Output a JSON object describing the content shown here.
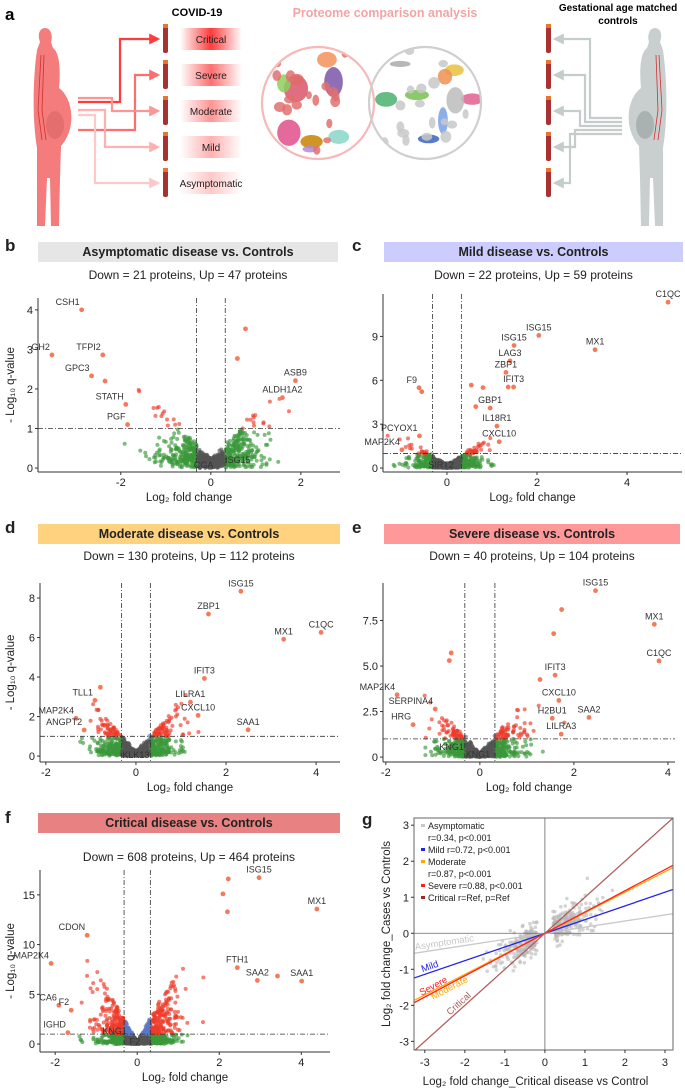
{
  "panel_a": {
    "letter": "a",
    "covid_title": "COVID-19",
    "severity_labels": [
      "Critical",
      "Severe",
      "Moderate",
      "Mild",
      "Asymptomatic"
    ],
    "severity_colors": [
      "#ff3b3b",
      "#ff6e6e",
      "#ff9494",
      "#ffb0b0",
      "#ffc8c8"
    ],
    "analysis_title": "Proteome comparison analysis",
    "controls_title_line1": "Gestational age matched",
    "controls_title_line2": "controls",
    "case_color": "#f47c7c",
    "control_color": "#c9cfcf"
  },
  "colors": {
    "significant": "#ee3a2a",
    "labeled_point": "#f47a5c",
    "not_significant_fc": "#3a983a",
    "not_significant": "#555555",
    "significant_small_fc": "#5a78c8"
  },
  "chart_data": [
    {
      "type": "scatter",
      "panel": "b",
      "title": "Asymptomatic disease vs. Controls",
      "title_bg": "#e6e6e6",
      "subtitle": "Down = 21 proteins, Up = 47 proteins",
      "xlabel": "Log₂ fold change",
      "ylabel": "- Log₁₀ q-value",
      "xlim": [
        -3.84,
        2.87
      ],
      "ylim": [
        -0.1,
        4.3
      ],
      "xticks": [
        {
          "v": -2,
          "t": "-2"
        },
        {
          "v": 0,
          "t": "0"
        },
        {
          "v": 2,
          "t": "2"
        }
      ],
      "yticks": [
        {
          "v": 0,
          "t": "0"
        },
        {
          "v": 1,
          "t": "1"
        },
        {
          "v": 2,
          "t": "2"
        },
        {
          "v": 3,
          "t": "3"
        },
        {
          "v": 4,
          "t": "4"
        }
      ],
      "fc_cutoff": 0.32,
      "q_cutoff": 1,
      "points": [
        {
          "label": "CSH1",
          "x": -2.87,
          "y": 4.0
        },
        {
          "label": "GH2",
          "x": -3.53,
          "y": 2.86
        },
        {
          "label": "TFPI2",
          "x": -2.4,
          "y": 2.86
        },
        {
          "label": "GPC3",
          "x": -2.65,
          "y": 2.33
        },
        {
          "label": "",
          "x": -2.35,
          "y": 2.2
        },
        {
          "label": "STATH",
          "x": -1.89,
          "y": 1.61
        },
        {
          "label": "PGF",
          "x": -1.85,
          "y": 1.1
        },
        {
          "label": "ASB9",
          "x": 1.88,
          "y": 2.21
        },
        {
          "label": "ALDH1A2",
          "x": 1.59,
          "y": 1.78
        },
        {
          "label": "",
          "x": 0.77,
          "y": 3.52
        },
        {
          "label": "",
          "x": 0.59,
          "y": 2.77
        },
        {
          "label": "CGA",
          "x": -0.16,
          "y": 0.08,
          "mark": false
        },
        {
          "label": "ISG15",
          "x": 0.6,
          "y": 0.2,
          "mark": false
        }
      ]
    },
    {
      "type": "scatter",
      "panel": "c",
      "title": "Mild disease vs. Controls",
      "title_bg": "#ccccff",
      "subtitle": "Down = 22 proteins, Up = 59 proteins",
      "xlabel": "Log₂ fold change",
      "ylabel": "",
      "xlim": [
        -1.42,
        5.22
      ],
      "ylim": [
        -0.27,
        11.9
      ],
      "xticks": [
        {
          "v": 0,
          "t": "0"
        },
        {
          "v": 2,
          "t": "2"
        },
        {
          "v": 4,
          "t": "4"
        }
      ],
      "yticks": [
        {
          "v": 0,
          "t": "0"
        },
        {
          "v": 3,
          "t": "3"
        },
        {
          "v": 6,
          "t": "6"
        },
        {
          "v": 9,
          "t": "9"
        }
      ],
      "fc_cutoff": 0.32,
      "q_cutoff": 1,
      "points": [
        {
          "label": "C1QC",
          "x": 4.91,
          "y": 11.34
        },
        {
          "label": "ISG15",
          "x": 2.04,
          "y": 9.07
        },
        {
          "label": "ISG15",
          "x": 1.49,
          "y": 8.38
        },
        {
          "label": "MX1",
          "x": 3.29,
          "y": 8.09
        },
        {
          "label": "LAG3",
          "x": 1.4,
          "y": 7.33
        },
        {
          "label": "ZBP1",
          "x": 1.31,
          "y": 6.54
        },
        {
          "label": "IFIT3",
          "x": 1.48,
          "y": 5.54
        },
        {
          "label": "",
          "x": 1.36,
          "y": 5.54
        },
        {
          "label": "F9",
          "x": -0.62,
          "y": 5.49
        },
        {
          "label": "",
          "x": -0.56,
          "y": 5.22
        },
        {
          "label": "GBP1",
          "x": 0.96,
          "y": 4.1
        },
        {
          "label": "IL18R1",
          "x": 1.11,
          "y": 2.87
        },
        {
          "label": "CXCL10",
          "x": 1.16,
          "y": 1.8
        },
        {
          "label": "PCYOX1",
          "x": -0.61,
          "y": 2.2
        },
        {
          "label": "MAP2K4",
          "x": -1.0,
          "y": 1.25
        },
        {
          "label": "",
          "x": 0.54,
          "y": 5.67
        },
        {
          "label": "",
          "x": 0.8,
          "y": 5.5
        },
        {
          "label": "",
          "x": 0.64,
          "y": 4.2
        },
        {
          "label": "SIRT2",
          "x": -0.13,
          "y": 0.2,
          "mark": false
        }
      ]
    },
    {
      "type": "scatter",
      "panel": "d",
      "title": "Moderate disease vs. Controls",
      "title_bg": "#ffd27f",
      "subtitle": "Down = 130 proteins, Up = 112 proteins",
      "xlabel": "Log₂ fold change",
      "ylabel": "- Log₁₀ q-value",
      "xlim": [
        -2.13,
        4.53
      ],
      "ylim": [
        -0.3,
        8.76
      ],
      "xticks": [
        {
          "v": -2,
          "t": "-2"
        },
        {
          "v": 0,
          "t": "0"
        },
        {
          "v": 2,
          "t": "2"
        },
        {
          "v": 4,
          "t": "4"
        }
      ],
      "yticks": [
        {
          "v": 0,
          "t": "0"
        },
        {
          "v": 2,
          "t": "2"
        },
        {
          "v": 4,
          "t": "4"
        },
        {
          "v": 6,
          "t": "6"
        },
        {
          "v": 8,
          "t": "8"
        }
      ],
      "fc_cutoff": 0.32,
      "q_cutoff": 1,
      "points": [
        {
          "label": "ISG15",
          "x": 2.33,
          "y": 8.34
        },
        {
          "label": "ZBP1",
          "x": 1.61,
          "y": 7.19
        },
        {
          "label": "MX1",
          "x": 3.28,
          "y": 5.91
        },
        {
          "label": "C1QC",
          "x": 4.11,
          "y": 6.26
        },
        {
          "label": "IFIT3",
          "x": 1.52,
          "y": 3.93
        },
        {
          "label": "LILRA1",
          "x": 1.21,
          "y": 2.73
        },
        {
          "label": "CXCL10",
          "x": 1.38,
          "y": 2.06
        },
        {
          "label": "SAA1",
          "x": 2.49,
          "y": 1.33
        },
        {
          "label": "TLL1",
          "x": -0.91,
          "y": 2.82
        },
        {
          "label": "",
          "x": -0.79,
          "y": 3.48
        },
        {
          "label": "MAP2K4",
          "x": -1.33,
          "y": 1.91
        },
        {
          "label": "ANGPT2",
          "x": -1.15,
          "y": 1.32
        },
        {
          "label": "KLK13",
          "x": 0.0,
          "y": 0.05,
          "mark": false
        }
      ]
    },
    {
      "type": "scatter",
      "panel": "e",
      "title": "Severe disease vs. Controls",
      "title_bg": "#ff9999",
      "subtitle": "Down = 40 proteins, Up = 104 proteins",
      "xlabel": "Log₂ fold change",
      "ylabel": "",
      "xlim": [
        -2.06,
        4.15
      ],
      "ylim": [
        -0.27,
        9.56
      ],
      "xticks": [
        {
          "v": -2,
          "t": "-2"
        },
        {
          "v": 0,
          "t": "0"
        },
        {
          "v": 2,
          "t": "2"
        },
        {
          "v": 4,
          "t": "4"
        }
      ],
      "yticks": [
        {
          "v": 0,
          "t": "0"
        },
        {
          "v": 2.5,
          "t": "2.5"
        },
        {
          "v": 5,
          "t": "5.0"
        },
        {
          "v": 7.5,
          "t": "7.5"
        }
      ],
      "fc_cutoff": 0.32,
      "q_cutoff": 1,
      "points": [
        {
          "label": "ISG15",
          "x": 2.46,
          "y": 9.14
        },
        {
          "label": "",
          "x": 1.74,
          "y": 8.1
        },
        {
          "label": "",
          "x": 1.57,
          "y": 6.78
        },
        {
          "label": "MX1",
          "x": 3.71,
          "y": 7.29
        },
        {
          "label": "C1QC",
          "x": 3.81,
          "y": 5.28
        },
        {
          "label": "IFIT3",
          "x": 1.6,
          "y": 4.5
        },
        {
          "label": "",
          "x": 1.28,
          "y": 4.26
        },
        {
          "label": "CXCL10",
          "x": 1.68,
          "y": 3.11
        },
        {
          "label": "H2BU1",
          "x": 1.54,
          "y": 2.13
        },
        {
          "label": "SAA2",
          "x": 2.32,
          "y": 2.18
        },
        {
          "label": "LILRA3",
          "x": 1.73,
          "y": 1.26
        },
        {
          "label": "MAP2K4",
          "x": -1.76,
          "y": 3.42
        },
        {
          "label": "SERPINA4",
          "x": -0.95,
          "y": 2.64
        },
        {
          "label": "HRG",
          "x": -1.42,
          "y": 1.78
        },
        {
          "label": "",
          "x": -0.61,
          "y": 5.72
        },
        {
          "label": "",
          "x": -0.65,
          "y": 5.3
        },
        {
          "label": "KNG1",
          "x": -0.6,
          "y": 0.55,
          "mark": false
        },
        {
          "label": "KNG1",
          "x": -0.04,
          "y": 0.13,
          "mark": false
        }
      ]
    },
    {
      "type": "scatter",
      "panel": "f",
      "title": "Critical disease vs. Controls",
      "title_bg": "#e88282",
      "subtitle": "Down = 608 proteins, Up = 464 proteins",
      "xlabel": "Log₂ fold change",
      "ylabel": "- Log₁₀ q-value",
      "xlim": [
        -2.37,
        4.7
      ],
      "ylim": [
        -0.8,
        17.5
      ],
      "xticks": [
        {
          "v": -2,
          "t": "-2"
        },
        {
          "v": 0,
          "t": "0"
        },
        {
          "v": 2,
          "t": "2"
        },
        {
          "v": 4,
          "t": "4"
        }
      ],
      "yticks": [
        {
          "v": 0,
          "t": "0"
        },
        {
          "v": 5,
          "t": "5"
        },
        {
          "v": 10,
          "t": "10"
        },
        {
          "v": 15,
          "t": "15"
        }
      ],
      "fc_cutoff": 0.32,
      "q_cutoff": 1,
      "points": [
        {
          "label": "ISG15",
          "x": 2.97,
          "y": 16.73
        },
        {
          "label": "",
          "x": 2.22,
          "y": 16.6
        },
        {
          "label": "",
          "x": 2.09,
          "y": 15.1
        },
        {
          "label": "",
          "x": 2.2,
          "y": 13.3
        },
        {
          "label": "MX1",
          "x": 4.38,
          "y": 13.57
        },
        {
          "label": "CDON",
          "x": -1.22,
          "y": 10.94
        },
        {
          "label": "MAP2K4",
          "x": -2.1,
          "y": 8.11
        },
        {
          "label": "FTH1",
          "x": 2.44,
          "y": 7.68
        },
        {
          "label": "SAA2",
          "x": 2.93,
          "y": 6.4
        },
        {
          "label": "",
          "x": 3.42,
          "y": 6.84
        },
        {
          "label": "SAA1",
          "x": 4.01,
          "y": 6.33
        },
        {
          "label": "CA6",
          "x": -1.91,
          "y": 3.9
        },
        {
          "label": "F2",
          "x": -1.61,
          "y": 3.4
        },
        {
          "label": "IGHD",
          "x": -1.69,
          "y": 1.14
        },
        {
          "label": "KNG1",
          "x": -0.55,
          "y": 1.3,
          "mark": false
        },
        {
          "label": "F2",
          "x": -0.06,
          "y": 0.27,
          "mark": false
        }
      ]
    },
    {
      "type": "scatter",
      "panel": "g",
      "xlabel": "Log₂ fold change_Critical disease vs Control",
      "ylabel": "Log₂ fold change_Cases vs Controls",
      "xlim": [
        -3.27,
        3.2
      ],
      "ylim": [
        -3.24,
        3.2
      ],
      "xticks": [
        {
          "v": -3,
          "t": "-3"
        },
        {
          "v": -2,
          "t": "-2"
        },
        {
          "v": -1,
          "t": "-1"
        },
        {
          "v": 0,
          "t": "0"
        },
        {
          "v": 1,
          "t": "1"
        },
        {
          "v": 2,
          "t": "2"
        },
        {
          "v": 3,
          "t": "3"
        }
      ],
      "yticks": [
        {
          "v": -3,
          "t": "-3"
        },
        {
          "v": -2,
          "t": "-2"
        },
        {
          "v": -1,
          "t": "-1"
        },
        {
          "v": 0,
          "t": "0"
        },
        {
          "v": 1,
          "t": "1"
        },
        {
          "v": 2,
          "t": "2"
        },
        {
          "v": 3,
          "t": "3"
        }
      ],
      "legend_position": "top-left",
      "series": [
        {
          "name": "Asymptomatic",
          "legend": [
            "Asymptomatic",
            "r=0.34, p<0.001"
          ],
          "r": 0.34,
          "slope": 0.17,
          "color": "#c8c8c8"
        },
        {
          "name": "Mild",
          "legend": [
            "Mild r=0.72, p<0.001"
          ],
          "r": 0.72,
          "slope": 0.38,
          "color": "#2424e6"
        },
        {
          "name": "Moderate",
          "legend": [
            "Moderate",
            "r=0.87, p<0.001"
          ],
          "r": 0.87,
          "slope": 0.57,
          "color": "#ffa500"
        },
        {
          "name": "Severe",
          "legend": [
            "Severe r=0.88, p<0.001"
          ],
          "r": 0.88,
          "slope": 0.59,
          "color": "#ff2020"
        },
        {
          "name": "Critical",
          "legend": [
            "Critical r=Ref, p=Ref"
          ],
          "r": "Ref",
          "slope": 1.0,
          "color": "#b2605e",
          "legend_color": "#a02828"
        }
      ]
    }
  ]
}
